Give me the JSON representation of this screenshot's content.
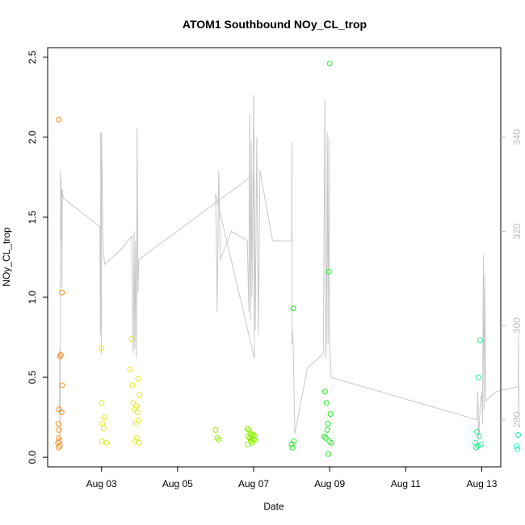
{
  "chart_data": {
    "type": "scatter",
    "title": "ATOM1 Southbound NOy_CL_trop",
    "xlabel": "Date",
    "ylabel": "NOy_CL_trop",
    "xlim": [
      "2016-08-01T14:00",
      "2016-08-13T12:00"
    ],
    "ylim": [
      -0.06,
      2.56
    ],
    "y2lim": [
      270,
      359
    ],
    "x_ticks": [
      {
        "date": "2016-08-03",
        "label": "Aug 03"
      },
      {
        "date": "2016-08-05",
        "label": "Aug 05"
      },
      {
        "date": "2016-08-07",
        "label": "Aug 07"
      },
      {
        "date": "2016-08-09",
        "label": "Aug 09"
      },
      {
        "date": "2016-08-11",
        "label": "Aug 11"
      },
      {
        "date": "2016-08-13",
        "label": "Aug 13"
      }
    ],
    "y_ticks": [
      {
        "value": 0.0,
        "label": "0.0"
      },
      {
        "value": 0.5,
        "label": "0.5"
      },
      {
        "value": 1.0,
        "label": "1.0"
      },
      {
        "value": 1.5,
        "label": "1.5"
      },
      {
        "value": 2.0,
        "label": "2.0"
      },
      {
        "value": 2.5,
        "label": "2.5"
      }
    ],
    "y2_ticks": [
      {
        "value": 280,
        "label": "280"
      },
      {
        "value": 300,
        "label": "300"
      },
      {
        "value": 320,
        "label": "320"
      },
      {
        "value": 340,
        "label": "340"
      }
    ],
    "grid": false,
    "colors": {
      "line": "#c8c8c8",
      "right_axis": "#bebebe",
      "frame": "#000000"
    },
    "line_series": [
      [
        "2016-08-01T21:30",
        282
      ],
      [
        "2016-08-01T21:40",
        295
      ],
      [
        "2016-08-01T21:50",
        276
      ],
      [
        "2016-08-01T22:00",
        298
      ],
      [
        "2016-08-01T22:10",
        333
      ],
      [
        "2016-08-01T22:20",
        323
      ],
      [
        "2016-08-01T22:30",
        331
      ],
      [
        "2016-08-01T22:40",
        318
      ],
      [
        "2016-08-01T22:50",
        329
      ],
      [
        "2016-08-01T23:00",
        308
      ],
      [
        "2016-08-01T23:10",
        329
      ],
      [
        "2016-08-01T23:20",
        328
      ],
      [
        "2016-08-02T00:00",
        327
      ],
      [
        "2016-08-02T23:00",
        321
      ],
      [
        "2016-08-02T23:20",
        298
      ],
      [
        "2016-08-02T23:30",
        341
      ],
      [
        "2016-08-02T23:50",
        294
      ],
      [
        "2016-08-03T00:00",
        341
      ],
      [
        "2016-08-03T01:00",
        316
      ],
      [
        "2016-08-03T02:00",
        313
      ],
      [
        "2016-08-03T12:00",
        316
      ],
      [
        "2016-08-03T19:00",
        319
      ],
      [
        "2016-08-03T20:00",
        294
      ],
      [
        "2016-08-03T20:30",
        320
      ],
      [
        "2016-08-03T21:00",
        295
      ],
      [
        "2016-08-03T21:30",
        318
      ],
      [
        "2016-08-03T22:00",
        293
      ],
      [
        "2016-08-03T22:30",
        342
      ],
      [
        "2016-08-03T23:00",
        307
      ],
      [
        "2016-08-03T23:30",
        314
      ],
      [
        "2016-08-07T00:00",
        332
      ],
      [
        "2016-08-07T00:30",
        293
      ],
      [
        "2016-08-06T00:00",
        328
      ],
      [
        "2016-08-06T00:30",
        318
      ],
      [
        "2016-08-06T01:00",
        303
      ],
      [
        "2016-08-06T02:00",
        333
      ],
      [
        "2016-08-06T03:00",
        314
      ],
      [
        "2016-08-06T10:00",
        320
      ],
      [
        "2016-08-06T20:00",
        318
      ],
      [
        "2016-08-06T21:00",
        303
      ],
      [
        "2016-08-06T21:30",
        345
      ],
      [
        "2016-08-06T22:00",
        301
      ],
      [
        "2016-08-06T22:30",
        339
      ],
      [
        "2016-08-06T23:00",
        306
      ],
      [
        "2016-08-07T00:00",
        349
      ],
      [
        "2016-08-07T01:00",
        299
      ],
      [
        "2016-08-07T02:00",
        340
      ],
      [
        "2016-08-07T03:00",
        298
      ],
      [
        "2016-08-07T04:00",
        333
      ],
      [
        "2016-08-07T12:00",
        318
      ],
      [
        "2016-08-08T00:00",
        318
      ],
      [
        "2016-08-08T00:10",
        339
      ],
      [
        "2016-08-08T00:20",
        296
      ],
      [
        "2016-08-08T00:30",
        299
      ],
      [
        "2016-08-08T01:00",
        296
      ],
      [
        "2016-08-08T02:00",
        277
      ],
      [
        "2016-08-08T10:00",
        291
      ],
      [
        "2016-08-08T20:00",
        294
      ],
      [
        "2016-08-08T21:00",
        348
      ],
      [
        "2016-08-08T21:30",
        293
      ],
      [
        "2016-08-08T22:00",
        298
      ],
      [
        "2016-08-08T22:30",
        341
      ],
      [
        "2016-08-08T23:00",
        296
      ],
      [
        "2016-08-08T23:30",
        340
      ],
      [
        "2016-08-09T00:00",
        295
      ],
      [
        "2016-08-09T01:00",
        289
      ],
      [
        "2016-08-12T21:00",
        280
      ],
      [
        "2016-08-12T21:30",
        286
      ],
      [
        "2016-08-12T22:00",
        276
      ],
      [
        "2016-08-12T23:00",
        283
      ],
      [
        "2016-08-13T00:00",
        286
      ],
      [
        "2016-08-13T00:30",
        279
      ],
      [
        "2016-08-13T01:00",
        315
      ],
      [
        "2016-08-13T01:30",
        282
      ],
      [
        "2016-08-13T02:00",
        311
      ],
      [
        "2016-08-13T02:30",
        284
      ],
      [
        "2016-08-13T09:00",
        286
      ],
      [
        "2016-08-13T23:00",
        287
      ],
      [
        "2016-08-13T23:10",
        298
      ],
      [
        "2016-08-13T23:20",
        281
      ],
      [
        "2016-08-13T23:30",
        287
      ]
    ],
    "points": [
      {
        "x": "2016-08-01T21:00",
        "y": 2.11,
        "color": "#ff8c1a"
      },
      {
        "x": "2016-08-01T23:00",
        "y": 1.03,
        "color": "#ff8c1a"
      },
      {
        "x": "2016-08-01T22:20",
        "y": 0.64,
        "color": "#ff8c1a"
      },
      {
        "x": "2016-08-01T21:50",
        "y": 0.63,
        "color": "#ff8c1a"
      },
      {
        "x": "2016-08-01T23:10",
        "y": 0.45,
        "color": "#ff8c1a"
      },
      {
        "x": "2016-08-01T21:15",
        "y": 0.3,
        "color": "#ff8c1a"
      },
      {
        "x": "2016-08-01T22:50",
        "y": 0.28,
        "color": "#ff8c1a"
      },
      {
        "x": "2016-08-01T20:40",
        "y": 0.21,
        "color": "#ff8c1a"
      },
      {
        "x": "2016-08-01T21:10",
        "y": 0.17,
        "color": "#ff8c1a"
      },
      {
        "x": "2016-08-01T20:50",
        "y": 0.12,
        "color": "#ff8c1a"
      },
      {
        "x": "2016-08-01T21:30",
        "y": 0.1,
        "color": "#ff8c1a"
      },
      {
        "x": "2016-08-01T20:30",
        "y": 0.09,
        "color": "#ff8c1a"
      },
      {
        "x": "2016-08-01T21:40",
        "y": 0.07,
        "color": "#ff8c1a"
      },
      {
        "x": "2016-08-01T21:00",
        "y": 0.06,
        "color": "#ff8c1a"
      },
      {
        "x": "2016-08-03T00:00",
        "y": 0.68,
        "color": "#e6e619"
      },
      {
        "x": "2016-08-03T00:10",
        "y": 0.34,
        "color": "#e6e619"
      },
      {
        "x": "2016-08-03T02:00",
        "y": 0.25,
        "color": "#e6e619"
      },
      {
        "x": "2016-08-03T00:40",
        "y": 0.21,
        "color": "#e6e619"
      },
      {
        "x": "2016-08-03T01:20",
        "y": 0.18,
        "color": "#e6e619"
      },
      {
        "x": "2016-08-03T00:20",
        "y": 0.1,
        "color": "#e6e619"
      },
      {
        "x": "2016-08-03T03:00",
        "y": 0.09,
        "color": "#e6e619"
      },
      {
        "x": "2016-08-03T19:00",
        "y": 0.74,
        "color": "#e6e619"
      },
      {
        "x": "2016-08-03T18:00",
        "y": 0.55,
        "color": "#e6e619"
      },
      {
        "x": "2016-08-03T23:00",
        "y": 0.49,
        "color": "#e6e619"
      },
      {
        "x": "2016-08-03T19:30",
        "y": 0.45,
        "color": "#e6e619"
      },
      {
        "x": "2016-08-04T00:00",
        "y": 0.39,
        "color": "#e6e619"
      },
      {
        "x": "2016-08-03T20:00",
        "y": 0.34,
        "color": "#e6e619"
      },
      {
        "x": "2016-08-03T22:00",
        "y": 0.32,
        "color": "#e6e619"
      },
      {
        "x": "2016-08-03T21:00",
        "y": 0.3,
        "color": "#e6e619"
      },
      {
        "x": "2016-08-03T22:40",
        "y": 0.28,
        "color": "#e6e619"
      },
      {
        "x": "2016-08-03T23:20",
        "y": 0.23,
        "color": "#e6e619"
      },
      {
        "x": "2016-08-03T21:40",
        "y": 0.21,
        "color": "#e6e619"
      },
      {
        "x": "2016-08-03T22:20",
        "y": 0.12,
        "color": "#e6e619"
      },
      {
        "x": "2016-08-03T21:10",
        "y": 0.1,
        "color": "#e6e619"
      },
      {
        "x": "2016-08-03T23:40",
        "y": 0.09,
        "color": "#e6e619"
      },
      {
        "x": "2016-08-06T00:00",
        "y": 0.17,
        "color": "#8cf000"
      },
      {
        "x": "2016-08-06T01:00",
        "y": 0.12,
        "color": "#8cf000"
      },
      {
        "x": "2016-08-06T02:00",
        "y": 0.11,
        "color": "#8cf000"
      },
      {
        "x": "2016-08-06T20:00",
        "y": 0.18,
        "color": "#8cf000"
      },
      {
        "x": "2016-08-06T21:00",
        "y": 0.17,
        "color": "#8cf000"
      },
      {
        "x": "2016-08-06T22:00",
        "y": 0.15,
        "color": "#8cf000"
      },
      {
        "x": "2016-08-06T23:00",
        "y": 0.14,
        "color": "#8cf000"
      },
      {
        "x": "2016-08-07T00:00",
        "y": 0.14,
        "color": "#8cf000"
      },
      {
        "x": "2016-08-06T20:30",
        "y": 0.13,
        "color": "#8cf000"
      },
      {
        "x": "2016-08-06T21:30",
        "y": 0.12,
        "color": "#8cf000"
      },
      {
        "x": "2016-08-06T22:30",
        "y": 0.12,
        "color": "#8cf000"
      },
      {
        "x": "2016-08-06T23:30",
        "y": 0.11,
        "color": "#8cf000"
      },
      {
        "x": "2016-08-07T00:30",
        "y": 0.11,
        "color": "#8cf000"
      },
      {
        "x": "2016-08-06T22:10",
        "y": 0.1,
        "color": "#8cf000"
      },
      {
        "x": "2016-08-06T23:10",
        "y": 0.09,
        "color": "#8cf000"
      },
      {
        "x": "2016-08-06T20:10",
        "y": 0.08,
        "color": "#8cf000"
      },
      {
        "x": "2016-08-07T01:00",
        "y": 0.13,
        "color": "#8cf000"
      },
      {
        "x": "2016-08-08T01:00",
        "y": 0.93,
        "color": "#1ef01e"
      },
      {
        "x": "2016-08-08T00:00",
        "y": 0.08,
        "color": "#1ef01e"
      },
      {
        "x": "2016-08-08T01:30",
        "y": 0.1,
        "color": "#1ef01e"
      },
      {
        "x": "2016-08-08T00:30",
        "y": 0.06,
        "color": "#1ef01e"
      },
      {
        "x": "2016-08-09T00:00",
        "y": 2.46,
        "color": "#1ef01e"
      },
      {
        "x": "2016-08-08T23:30",
        "y": 1.16,
        "color": "#1ef01e"
      },
      {
        "x": "2016-08-08T21:00",
        "y": 0.41,
        "color": "#1ef01e"
      },
      {
        "x": "2016-08-08T22:00",
        "y": 0.34,
        "color": "#1ef01e"
      },
      {
        "x": "2016-08-09T00:30",
        "y": 0.27,
        "color": "#1ef01e"
      },
      {
        "x": "2016-08-08T23:00",
        "y": 0.21,
        "color": "#1ef01e"
      },
      {
        "x": "2016-08-08T22:30",
        "y": 0.17,
        "color": "#1ef01e"
      },
      {
        "x": "2016-08-08T20:30",
        "y": 0.13,
        "color": "#1ef01e"
      },
      {
        "x": "2016-08-08T21:30",
        "y": 0.12,
        "color": "#1ef01e"
      },
      {
        "x": "2016-08-08T23:50",
        "y": 0.1,
        "color": "#1ef01e"
      },
      {
        "x": "2016-08-09T01:00",
        "y": 0.09,
        "color": "#1ef01e"
      },
      {
        "x": "2016-08-08T23:10",
        "y": 0.02,
        "color": "#1ef01e"
      },
      {
        "x": "2016-08-12T23:00",
        "y": 0.73,
        "color": "#1ef08c"
      },
      {
        "x": "2016-08-12T22:00",
        "y": 0.5,
        "color": "#1ef08c"
      },
      {
        "x": "2016-08-12T21:00",
        "y": 0.16,
        "color": "#1ef08c"
      },
      {
        "x": "2016-08-12T22:30",
        "y": 0.13,
        "color": "#1ef08c"
      },
      {
        "x": "2016-08-12T20:00",
        "y": 0.09,
        "color": "#1ef08c"
      },
      {
        "x": "2016-08-12T23:30",
        "y": 0.08,
        "color": "#1ef08c"
      },
      {
        "x": "2016-08-12T21:30",
        "y": 0.07,
        "color": "#1ef08c"
      },
      {
        "x": "2016-08-12T20:30",
        "y": 0.06,
        "color": "#1ef08c"
      },
      {
        "x": "2016-08-13T23:00",
        "y": 0.14,
        "color": "#1ef0c8"
      },
      {
        "x": "2016-08-13T22:00",
        "y": 0.07,
        "color": "#1ef0c8"
      },
      {
        "x": "2016-08-13T22:30",
        "y": 0.05,
        "color": "#1ef0c8"
      }
    ]
  }
}
